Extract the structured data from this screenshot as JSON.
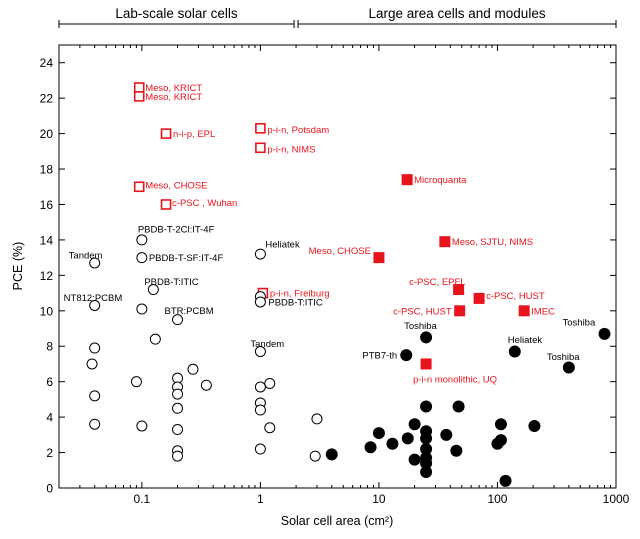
{
  "chart_data": {
    "type": "scatter",
    "xlabel": "Solar cell area (cm²)",
    "ylabel": "PCE (%)",
    "x_scale": "log",
    "xlim": [
      0.02,
      1000
    ],
    "ylim": [
      0,
      25
    ],
    "x_ticks": [
      {
        "value": 0.1,
        "label": "0.1"
      },
      {
        "value": 1,
        "label": "1"
      },
      {
        "value": 10,
        "label": "10"
      },
      {
        "value": 100,
        "label": "100"
      },
      {
        "value": 1000,
        "label": "1000"
      }
    ],
    "y_ticks": [
      0,
      2,
      4,
      6,
      8,
      10,
      12,
      14,
      16,
      18,
      20,
      22,
      24
    ],
    "grid": false,
    "region_labels": [
      {
        "text": "Lab-scale solar cells",
        "from": 0.02,
        "to": 2
      },
      {
        "text": "Large area cells and modules",
        "from": 2,
        "to": 1000
      }
    ],
    "colors": {
      "perovskite": "#e8141b",
      "organic": "#000000"
    },
    "series": [
      {
        "key": "perovskite_lab",
        "marker": "open-square",
        "color": "#e8141b",
        "points": [
          {
            "x": 0.095,
            "y": 22.6,
            "label": "Meso, KRICT"
          },
          {
            "x": 0.095,
            "y": 22.1,
            "label": "Meso, KRICT"
          },
          {
            "x": 0.16,
            "y": 20.0,
            "label": "n-i-p, EPL"
          },
          {
            "x": 1.0,
            "y": 20.3,
            "label": "p-i-n, Potsdam"
          },
          {
            "x": 1.0,
            "y": 19.2,
            "label": "p-i-n, NIMS"
          },
          {
            "x": 0.095,
            "y": 17.0,
            "label": "Meso, CHOSE"
          },
          {
            "x": 0.16,
            "y": 16.0,
            "label": "c-PSC  , Wuhan"
          },
          {
            "x": 1.05,
            "y": 11.0,
            "label": "p-i-n, Freiburg"
          }
        ]
      },
      {
        "key": "perovskite_large",
        "marker": "filled-square",
        "color": "#e8141b",
        "points": [
          {
            "x": 17.3,
            "y": 17.4,
            "label": "Microquanta"
          },
          {
            "x": 10.0,
            "y": 13.0,
            "label": "Meso, CHOSE"
          },
          {
            "x": 36.0,
            "y": 13.9,
            "label": "Meso, SJTU, NIMS"
          },
          {
            "x": 47.0,
            "y": 11.2,
            "label": "c-PSC, EPFL"
          },
          {
            "x": 70.0,
            "y": 10.7,
            "label": "c-PSC, HUST"
          },
          {
            "x": 48.0,
            "y": 10.0,
            "label": "c-PSC, HUST"
          },
          {
            "x": 168.0,
            "y": 10.0,
            "label": "IMEC"
          },
          {
            "x": 25.0,
            "y": 7.0,
            "label": "p-i-n monolithic, UQ"
          }
        ]
      },
      {
        "key": "organic_lab",
        "marker": "open-circle",
        "color": "#000000",
        "points": [
          {
            "x": 0.1,
            "y": 14.0,
            "label": "PBDB-T-2Cl:IT-4F"
          },
          {
            "x": 0.1,
            "y": 13.0,
            "label": "PBDB-T-SF:IT-4F"
          },
          {
            "x": 0.04,
            "y": 12.7,
            "label": "Tandem"
          },
          {
            "x": 0.125,
            "y": 11.2,
            "label": "PBDB-T:ITIC"
          },
          {
            "x": 0.04,
            "y": 10.3,
            "label": "NT812:PCBM"
          },
          {
            "x": 0.1,
            "y": 10.1,
            "label": ""
          },
          {
            "x": 0.2,
            "y": 9.5,
            "label": "BTR:PCBM"
          },
          {
            "x": 1.0,
            "y": 13.2,
            "label": "Heliatek"
          },
          {
            "x": 1.0,
            "y": 10.8,
            "label": ""
          },
          {
            "x": 1.0,
            "y": 10.5,
            "label": "PBDB-T:ITIC"
          },
          {
            "x": 1.0,
            "y": 7.7,
            "label": "Tandem"
          },
          {
            "x": 0.04,
            "y": 7.9,
            "label": ""
          },
          {
            "x": 0.13,
            "y": 8.4,
            "label": ""
          },
          {
            "x": 0.038,
            "y": 7.0,
            "label": ""
          },
          {
            "x": 0.09,
            "y": 6.0,
            "label": ""
          },
          {
            "x": 0.27,
            "y": 6.7,
            "label": ""
          },
          {
            "x": 0.2,
            "y": 6.2,
            "label": ""
          },
          {
            "x": 0.2,
            "y": 5.7,
            "label": ""
          },
          {
            "x": 0.2,
            "y": 5.3,
            "label": ""
          },
          {
            "x": 0.35,
            "y": 5.8,
            "label": ""
          },
          {
            "x": 0.04,
            "y": 5.2,
            "label": ""
          },
          {
            "x": 0.2,
            "y": 4.5,
            "label": ""
          },
          {
            "x": 0.04,
            "y": 3.6,
            "label": ""
          },
          {
            "x": 0.1,
            "y": 3.5,
            "label": ""
          },
          {
            "x": 0.2,
            "y": 3.3,
            "label": ""
          },
          {
            "x": 0.2,
            "y": 2.1,
            "label": ""
          },
          {
            "x": 0.2,
            "y": 1.8,
            "label": ""
          },
          {
            "x": 1.0,
            "y": 5.7,
            "label": ""
          },
          {
            "x": 1.2,
            "y": 5.9,
            "label": ""
          },
          {
            "x": 1.0,
            "y": 4.8,
            "label": ""
          },
          {
            "x": 1.0,
            "y": 4.4,
            "label": ""
          },
          {
            "x": 1.2,
            "y": 3.4,
            "label": ""
          },
          {
            "x": 1.0,
            "y": 2.2,
            "label": ""
          },
          {
            "x": 3.0,
            "y": 3.9,
            "label": ""
          },
          {
            "x": 2.9,
            "y": 1.8,
            "label": ""
          }
        ]
      },
      {
        "key": "organic_large",
        "marker": "filled-circle",
        "color": "#000000",
        "points": [
          {
            "x": 25.0,
            "y": 8.5,
            "label": "Toshiba"
          },
          {
            "x": 17.0,
            "y": 7.5,
            "label": "PTB7-th"
          },
          {
            "x": 140.0,
            "y": 7.7,
            "label": "Heliatek"
          },
          {
            "x": 400.0,
            "y": 6.8,
            "label": "Toshiba"
          },
          {
            "x": 800.0,
            "y": 8.7,
            "label": "Toshiba"
          },
          {
            "x": 4.0,
            "y": 1.9,
            "label": ""
          },
          {
            "x": 10.0,
            "y": 3.1,
            "label": ""
          },
          {
            "x": 8.5,
            "y": 2.3,
            "label": ""
          },
          {
            "x": 13.0,
            "y": 2.5,
            "label": ""
          },
          {
            "x": 17.5,
            "y": 2.8,
            "label": ""
          },
          {
            "x": 20.0,
            "y": 3.6,
            "label": ""
          },
          {
            "x": 20.0,
            "y": 1.6,
            "label": ""
          },
          {
            "x": 25.0,
            "y": 4.6,
            "label": ""
          },
          {
            "x": 25.0,
            "y": 3.2,
            "label": ""
          },
          {
            "x": 25.0,
            "y": 2.8,
            "label": ""
          },
          {
            "x": 25.0,
            "y": 2.2,
            "label": ""
          },
          {
            "x": 25.0,
            "y": 1.7,
            "label": ""
          },
          {
            "x": 25.0,
            "y": 1.4,
            "label": ""
          },
          {
            "x": 25.0,
            "y": 0.9,
            "label": ""
          },
          {
            "x": 37.0,
            "y": 3.0,
            "label": ""
          },
          {
            "x": 47.0,
            "y": 4.6,
            "label": ""
          },
          {
            "x": 45.0,
            "y": 2.1,
            "label": ""
          },
          {
            "x": 100.0,
            "y": 2.5,
            "label": ""
          },
          {
            "x": 107.0,
            "y": 2.7,
            "label": ""
          },
          {
            "x": 107.0,
            "y": 3.6,
            "label": ""
          },
          {
            "x": 117.0,
            "y": 0.4,
            "label": ""
          },
          {
            "x": 205.0,
            "y": 3.5,
            "label": ""
          }
        ]
      }
    ]
  }
}
